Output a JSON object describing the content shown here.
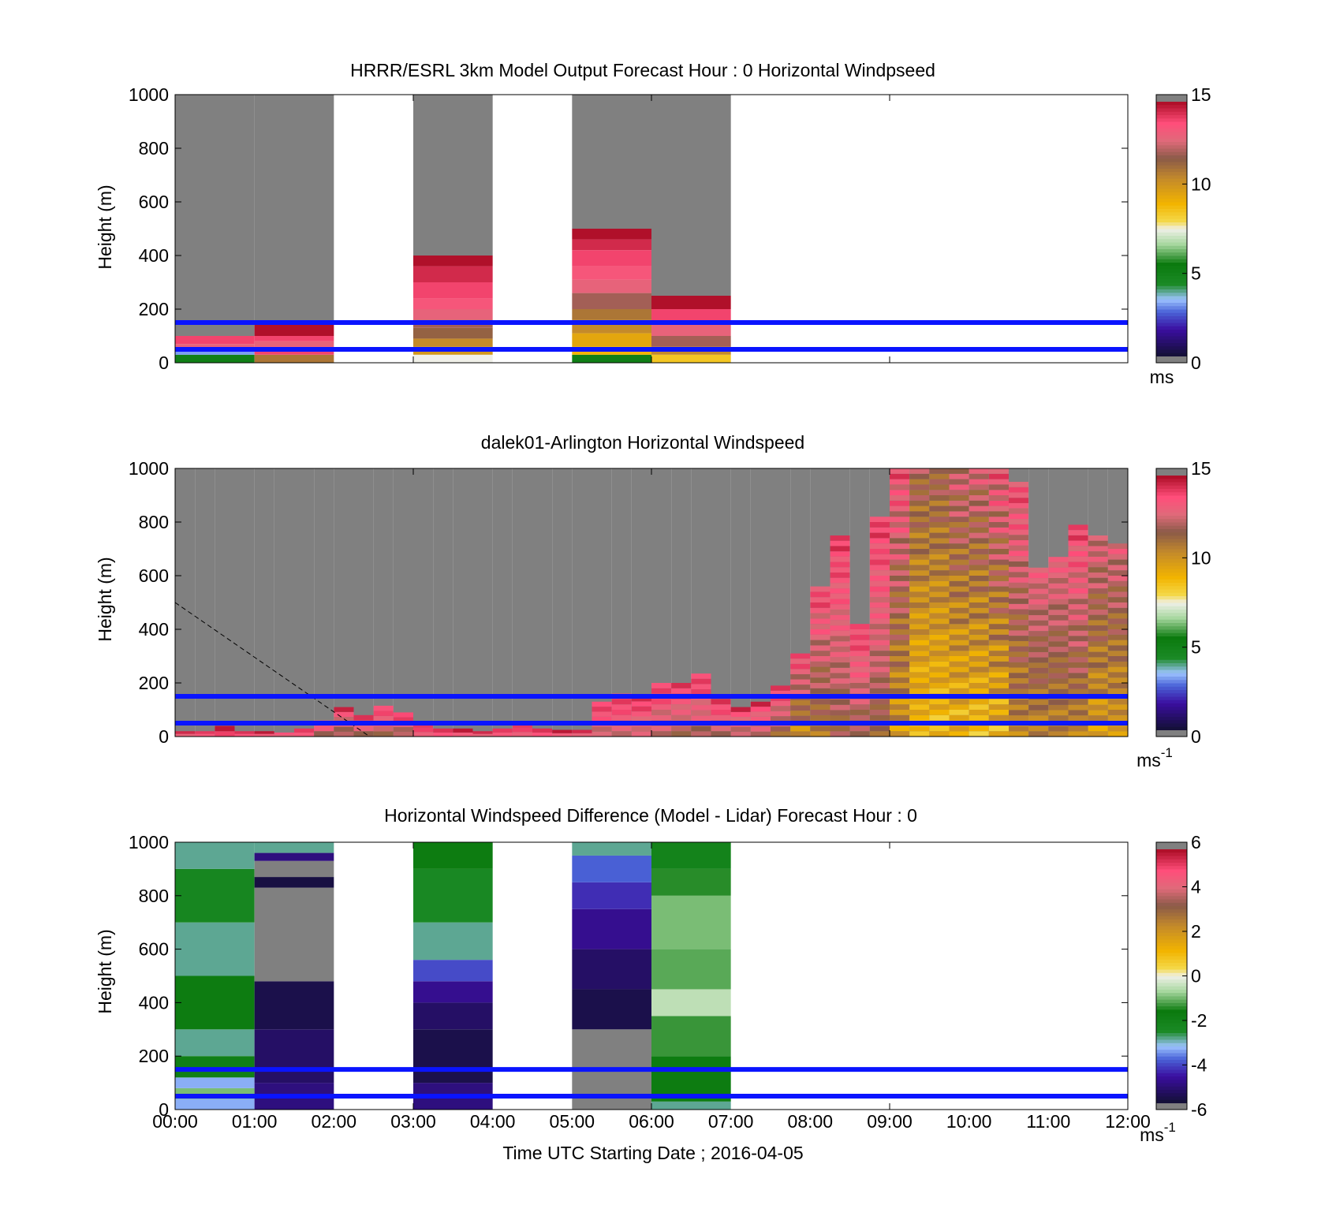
{
  "figure": {
    "xlabel": "Time UTC  Starting Date ; 2016-04-05",
    "x_ticks": [
      "00:00",
      "01:00",
      "02:00",
      "03:00",
      "04:00",
      "05:00",
      "06:00",
      "07:00",
      "08:00",
      "09:00",
      "10:00",
      "11:00",
      "12:00"
    ],
    "guide_lines_m": [
      50,
      150
    ],
    "guide_line_color": "#0a14ff",
    "missing_color": "#808080"
  },
  "chart_data": [
    {
      "type": "heatmap",
      "title": "HRRR/ESRL 3km Model Output   Forecast Hour : 0 Horizontal Windpseed",
      "ylabel": "Height (m)",
      "ylim": [
        0,
        1000
      ],
      "y_ticks": [
        "0",
        "200",
        "400",
        "600",
        "800",
        "1000"
      ],
      "xlim_hours": [
        0,
        12
      ],
      "colorbar": {
        "min": 0,
        "max": 15,
        "ticks": [
          "0",
          "5",
          "10",
          "15"
        ],
        "unit": "ms",
        "palette": "speed"
      },
      "columns": [
        {
          "t0": 0,
          "t1": 1,
          "profile": [
            [
              30,
              5
            ],
            [
              50,
              3
            ],
            [
              70,
              13
            ],
            [
              100,
              14
            ],
            [
              1000,
              null
            ]
          ]
        },
        {
          "t0": 1,
          "t1": 2,
          "profile": [
            [
              30,
              11
            ],
            [
              60,
              14
            ],
            [
              80,
              13
            ],
            [
              100,
              14
            ],
            [
              145,
              15
            ],
            [
              1000,
              null
            ]
          ]
        },
        {
          "t0": 3,
          "t1": 4,
          "profile": [
            [
              30,
              7.5
            ],
            [
              60,
              10
            ],
            [
              90,
              10.5
            ],
            [
              130,
              11.5
            ],
            [
              160,
              12
            ],
            [
              200,
              13
            ],
            [
              240,
              13.5
            ],
            [
              300,
              14
            ],
            [
              360,
              14.5
            ],
            [
              400,
              15
            ],
            [
              1000,
              null
            ]
          ]
        },
        {
          "t0": 5,
          "t1": 6,
          "profile": [
            [
              30,
              5
            ],
            [
              60,
              9
            ],
            [
              110,
              9.5
            ],
            [
              160,
              10.5
            ],
            [
              200,
              11
            ],
            [
              260,
              12
            ],
            [
              310,
              13
            ],
            [
              360,
              13.5
            ],
            [
              420,
              14
            ],
            [
              460,
              14.5
            ],
            [
              500,
              15
            ],
            [
              1000,
              null
            ]
          ]
        },
        {
          "t0": 6,
          "t1": 7,
          "profile": [
            [
              30,
              8.5
            ],
            [
              60,
              10.5
            ],
            [
              100,
              12
            ],
            [
              150,
              13
            ],
            [
              200,
              14
            ],
            [
              250,
              15
            ],
            [
              1000,
              null
            ]
          ]
        }
      ]
    },
    {
      "type": "heatmap",
      "title": "dalek01-Arlington  Horizontal Windspeed",
      "ylabel": "Height (m)",
      "ylim": [
        0,
        1000
      ],
      "y_ticks": [
        "0",
        "200",
        "400",
        "600",
        "800",
        "1000"
      ],
      "xlim_hours": [
        0,
        12
      ],
      "colorbar": {
        "min": 0,
        "max": 15,
        "ticks": [
          "0",
          "5",
          "10",
          "15"
        ],
        "unit": "ms",
        "unit_superscript": "-1",
        "palette": "speed"
      },
      "dashed_line": {
        "from": [
          0,
          500
        ],
        "to": [
          2.45,
          0
        ]
      },
      "columns": [
        {
          "t": 0.25,
          "top": 20,
          "low": 13,
          "high": 15
        },
        {
          "t": 0.5,
          "top": 20,
          "low": 13,
          "high": 15
        },
        {
          "t": 0.75,
          "top": 40,
          "low": 14,
          "high": 15
        },
        {
          "t": 1.0,
          "top": 20,
          "low": 13,
          "high": 15
        },
        {
          "t": 1.25,
          "top": 20,
          "low": 13,
          "high": 15
        },
        {
          "t": 1.5,
          "top": 15,
          "low": 13,
          "high": 14
        },
        {
          "t": 1.75,
          "top": 30,
          "low": 13,
          "high": 15
        },
        {
          "t": 2.0,
          "top": 60,
          "low": 11.5,
          "high": 15
        },
        {
          "t": 2.25,
          "top": 110,
          "low": 11,
          "high": 15
        },
        {
          "t": 2.5,
          "top": 80,
          "low": 11,
          "high": 15
        },
        {
          "t": 2.75,
          "top": 115,
          "low": 11.5,
          "high": 15
        },
        {
          "t": 3.0,
          "top": 90,
          "low": 11.5,
          "high": 15
        },
        {
          "t": 3.25,
          "top": 50,
          "low": 13,
          "high": 15
        },
        {
          "t": 3.5,
          "top": 30,
          "low": 13,
          "high": 15
        },
        {
          "t": 3.75,
          "top": 30,
          "low": 13,
          "high": 15
        },
        {
          "t": 4.0,
          "top": 20,
          "low": 13,
          "high": 15
        },
        {
          "t": 4.25,
          "top": 30,
          "low": 13,
          "high": 15
        },
        {
          "t": 4.5,
          "top": 50,
          "low": 13,
          "high": 15
        },
        {
          "t": 4.75,
          "top": 30,
          "low": 13,
          "high": 15
        },
        {
          "t": 5.0,
          "top": 25,
          "low": 13,
          "high": 15
        },
        {
          "t": 5.25,
          "top": 25,
          "low": 13,
          "high": 15
        },
        {
          "t": 5.5,
          "top": 130,
          "low": 12,
          "high": 15
        },
        {
          "t": 5.75,
          "top": 160,
          "low": 12,
          "high": 15
        },
        {
          "t": 6.0,
          "top": 150,
          "low": 12,
          "high": 15
        },
        {
          "t": 6.25,
          "top": 200,
          "low": 11.5,
          "high": 15
        },
        {
          "t": 6.5,
          "top": 200,
          "low": 11.5,
          "high": 15
        },
        {
          "t": 6.75,
          "top": 235,
          "low": 11.5,
          "high": 15
        },
        {
          "t": 7.0,
          "top": 140,
          "low": 11.5,
          "high": 15
        },
        {
          "t": 7.25,
          "top": 110,
          "low": 11.5,
          "high": 15
        },
        {
          "t": 7.5,
          "top": 130,
          "low": 11.5,
          "high": 15
        },
        {
          "t": 7.75,
          "top": 190,
          "low": 11,
          "high": 15
        },
        {
          "t": 8.0,
          "top": 310,
          "low": 9.5,
          "high": 15
        },
        {
          "t": 8.25,
          "top": 560,
          "low": 10,
          "high": 15
        },
        {
          "t": 8.5,
          "top": 750,
          "low": 11,
          "high": 15
        },
        {
          "t": 8.75,
          "top": 420,
          "low": 11,
          "high": 15
        },
        {
          "t": 9.0,
          "top": 820,
          "low": 11,
          "high": 15
        },
        {
          "t": 9.25,
          "top": 1000,
          "low": 9,
          "high": 15
        },
        {
          "t": 9.5,
          "top": 1000,
          "low": 8,
          "high": 13
        },
        {
          "t": 9.75,
          "top": 1000,
          "low": 8,
          "high": 13
        },
        {
          "t": 10.0,
          "top": 1000,
          "low": 8,
          "high": 14
        },
        {
          "t": 10.25,
          "top": 1000,
          "low": 8,
          "high": 14
        },
        {
          "t": 10.5,
          "top": 1000,
          "low": 8,
          "high": 15
        },
        {
          "t": 10.75,
          "top": 950,
          "low": 9.5,
          "high": 15
        },
        {
          "t": 11.0,
          "top": 630,
          "low": 10,
          "high": 14
        },
        {
          "t": 11.25,
          "top": 670,
          "low": 10,
          "high": 14
        },
        {
          "t": 11.5,
          "top": 790,
          "low": 10,
          "high": 15
        },
        {
          "t": 11.75,
          "top": 750,
          "low": 9,
          "high": 14
        },
        {
          "t": 12.0,
          "top": 720,
          "low": 9,
          "high": 14
        }
      ]
    },
    {
      "type": "heatmap",
      "title": "Horizontal Windspeed Difference (Model - Lidar) Forecast Hour : 0",
      "ylabel": "Height (m)",
      "ylim": [
        0,
        1000
      ],
      "y_ticks": [
        "0",
        "200",
        "400",
        "600",
        "800",
        "1000"
      ],
      "xlim_hours": [
        0,
        12
      ],
      "colorbar": {
        "min": -6,
        "max": 6,
        "ticks": [
          "-6",
          "-4",
          "-2",
          "0",
          "2",
          "4",
          "6"
        ],
        "unit": "ms",
        "unit_superscript": "-1",
        "palette": "diff"
      },
      "columns": [
        {
          "t0": 0,
          "t1": 1,
          "profile": [
            [
              40,
              -3.5
            ],
            [
              80,
              -1
            ],
            [
              120,
              -3.5
            ],
            [
              200,
              -2
            ],
            [
              300,
              -3
            ],
            [
              500,
              -1.8
            ],
            [
              700,
              -3
            ],
            [
              900,
              -2.4
            ],
            [
              1000,
              -3
            ]
          ]
        },
        {
          "t0": 1,
          "t1": 2,
          "profile": [
            [
              100,
              -5.2
            ],
            [
              300,
              -5.5
            ],
            [
              480,
              -5.8
            ],
            [
              830,
              null
            ],
            [
              870,
              -5.9
            ],
            [
              930,
              null
            ],
            [
              960,
              -5.2
            ],
            [
              1000,
              -3
            ]
          ]
        },
        {
          "t0": 3,
          "t1": 4,
          "profile": [
            [
              100,
              -5.2
            ],
            [
              300,
              -5.8
            ],
            [
              400,
              -5.5
            ],
            [
              480,
              -5
            ],
            [
              560,
              -4.2
            ],
            [
              700,
              -3
            ],
            [
              900,
              -2.5
            ],
            [
              1000,
              -1.8
            ]
          ]
        },
        {
          "t0": 5,
          "t1": 6,
          "profile": [
            [
              300,
              null
            ],
            [
              450,
              -5.8
            ],
            [
              600,
              -5.5
            ],
            [
              750,
              -5
            ],
            [
              850,
              -4.5
            ],
            [
              950,
              -4
            ],
            [
              1000,
              -3
            ]
          ]
        },
        {
          "t0": 6,
          "t1": 7,
          "profile": [
            [
              30,
              -3
            ],
            [
              200,
              -1.8
            ],
            [
              350,
              -1.4
            ],
            [
              450,
              -0.5
            ],
            [
              600,
              -1.2
            ],
            [
              800,
              -1.0
            ],
            [
              900,
              -1.5
            ],
            [
              1000,
              -2.2
            ]
          ]
        }
      ]
    }
  ]
}
